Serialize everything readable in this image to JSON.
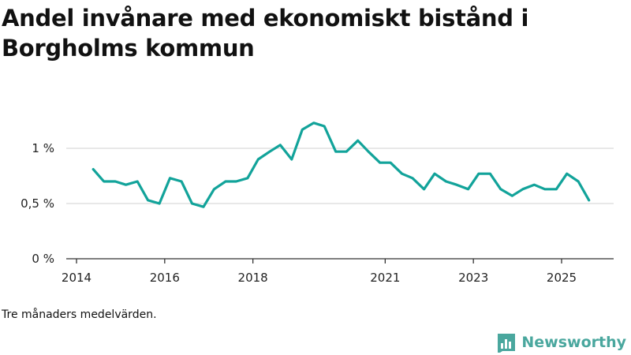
{
  "title": "Andel invånare med ekonomiskt bistånd i Borgholms kommun",
  "footnote": "Tre månaders medelvärden.",
  "brand": {
    "name": "Newsworthy",
    "color": "#4aa79e",
    "icon": "bar-chart-logo-icon"
  },
  "colors": {
    "line": "#12a39a",
    "grid": "#d9d9d9",
    "axis": "#333333"
  },
  "chart_data": {
    "type": "line",
    "title": "Andel invånare med ekonomiskt bistånd i Borgholms kommun",
    "xlabel": "",
    "ylabel": "",
    "xlim": [
      2014.0,
      2026.0
    ],
    "ylim": [
      0,
      1.4
    ],
    "x_ticks": [
      2014,
      2016,
      2018,
      2021,
      2023,
      2025
    ],
    "x_tick_labels": [
      "2014",
      "2016",
      "2018",
      "2021",
      "2023",
      "2025"
    ],
    "y_ticks": [
      0,
      0.5,
      1
    ],
    "y_tick_labels": [
      "0 %",
      "0,5 %",
      "1 %"
    ],
    "grid": true,
    "series": [
      {
        "name": "Andel invånare med ekonomiskt bistånd",
        "x": [
          2014.38,
          2014.62,
          2014.88,
          2015.12,
          2015.38,
          2015.62,
          2015.88,
          2016.12,
          2016.38,
          2016.62,
          2016.88,
          2017.12,
          2017.38,
          2017.62,
          2017.88,
          2018.12,
          2018.38,
          2018.62,
          2018.88,
          2019.12,
          2019.38,
          2019.62,
          2019.88,
          2020.12,
          2020.38,
          2020.62,
          2020.88,
          2021.12,
          2021.38,
          2021.62,
          2021.88,
          2022.12,
          2022.38,
          2022.62,
          2022.88,
          2023.12,
          2023.38,
          2023.62,
          2023.88,
          2024.12,
          2024.38,
          2024.62,
          2024.88,
          2025.12,
          2025.38,
          2025.62
        ],
        "values": [
          0.81,
          0.7,
          0.7,
          0.67,
          0.7,
          0.53,
          0.5,
          0.73,
          0.7,
          0.5,
          0.47,
          0.63,
          0.7,
          0.7,
          0.73,
          0.9,
          0.97,
          1.03,
          0.9,
          1.17,
          1.23,
          1.2,
          0.97,
          0.97,
          1.07,
          0.97,
          0.87,
          0.87,
          0.77,
          0.73,
          0.63,
          0.77,
          0.7,
          0.67,
          0.63,
          0.77,
          0.77,
          0.63,
          0.57,
          0.63,
          0.67,
          0.63,
          0.63,
          0.77,
          0.7,
          0.53
        ]
      }
    ]
  }
}
